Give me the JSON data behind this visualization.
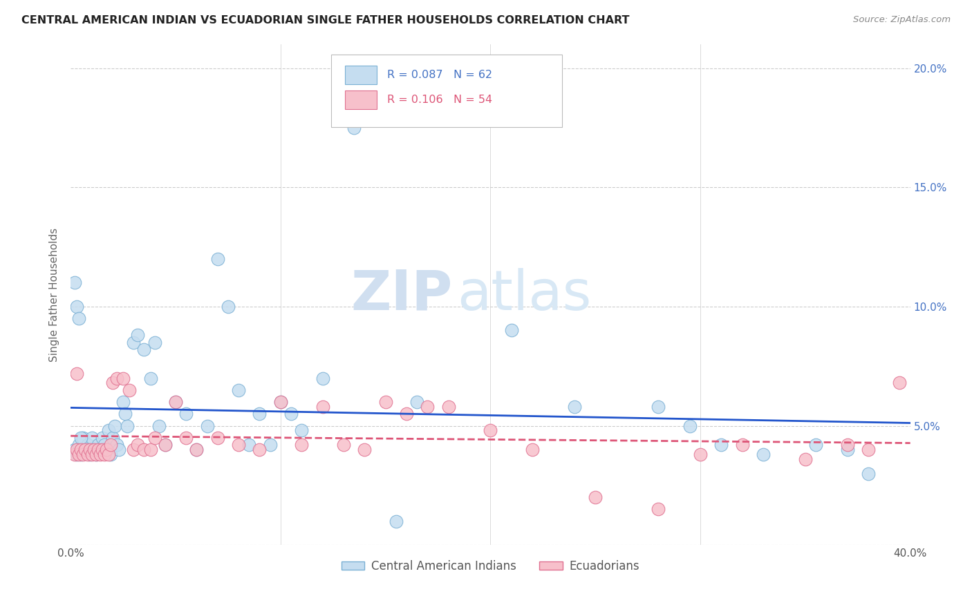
{
  "title": "CENTRAL AMERICAN INDIAN VS ECUADORIAN SINGLE FATHER HOUSEHOLDS CORRELATION CHART",
  "source": "Source: ZipAtlas.com",
  "ylabel": "Single Father Households",
  "xlim": [
    0.0,
    0.4
  ],
  "ylim": [
    0.0,
    0.21
  ],
  "watermark_zip": "ZIP",
  "watermark_atlas": "atlas",
  "line1_color": "#2255cc",
  "line2_color": "#dd5577",
  "scatter1_face": "#c5ddf0",
  "scatter1_edge": "#7ab0d4",
  "scatter2_face": "#f7c0cb",
  "scatter2_edge": "#e07090",
  "blue_x": [
    0.002,
    0.003,
    0.004,
    0.005,
    0.006,
    0.007,
    0.008,
    0.009,
    0.01,
    0.011,
    0.012,
    0.013,
    0.014,
    0.015,
    0.016,
    0.017,
    0.018,
    0.019,
    0.02,
    0.021,
    0.022,
    0.023,
    0.025,
    0.026,
    0.027,
    0.03,
    0.032,
    0.035,
    0.038,
    0.04,
    0.042,
    0.045,
    0.05,
    0.055,
    0.06,
    0.065,
    0.07,
    0.075,
    0.08,
    0.085,
    0.09,
    0.095,
    0.1,
    0.105,
    0.11,
    0.12,
    0.135,
    0.155,
    0.165,
    0.21,
    0.24,
    0.28,
    0.295,
    0.31,
    0.33,
    0.355,
    0.37,
    0.38,
    0.002,
    0.003,
    0.004,
    0.005
  ],
  "blue_y": [
    0.04,
    0.038,
    0.042,
    0.038,
    0.045,
    0.04,
    0.042,
    0.038,
    0.045,
    0.04,
    0.038,
    0.042,
    0.04,
    0.045,
    0.042,
    0.04,
    0.048,
    0.038,
    0.045,
    0.05,
    0.042,
    0.04,
    0.06,
    0.055,
    0.05,
    0.085,
    0.088,
    0.082,
    0.07,
    0.085,
    0.05,
    0.042,
    0.06,
    0.055,
    0.04,
    0.05,
    0.12,
    0.1,
    0.065,
    0.042,
    0.055,
    0.042,
    0.06,
    0.055,
    0.048,
    0.07,
    0.175,
    0.01,
    0.06,
    0.09,
    0.058,
    0.058,
    0.05,
    0.042,
    0.038,
    0.042,
    0.04,
    0.03,
    0.11,
    0.1,
    0.095,
    0.045
  ],
  "pink_x": [
    0.002,
    0.003,
    0.004,
    0.005,
    0.006,
    0.007,
    0.008,
    0.009,
    0.01,
    0.011,
    0.012,
    0.013,
    0.014,
    0.015,
    0.016,
    0.017,
    0.018,
    0.019,
    0.02,
    0.022,
    0.025,
    0.028,
    0.03,
    0.032,
    0.035,
    0.038,
    0.04,
    0.045,
    0.05,
    0.055,
    0.06,
    0.07,
    0.08,
    0.09,
    0.1,
    0.11,
    0.12,
    0.13,
    0.14,
    0.15,
    0.16,
    0.17,
    0.18,
    0.2,
    0.22,
    0.25,
    0.28,
    0.3,
    0.32,
    0.35,
    0.37,
    0.38,
    0.395,
    0.003
  ],
  "pink_y": [
    0.038,
    0.04,
    0.038,
    0.04,
    0.038,
    0.04,
    0.038,
    0.04,
    0.038,
    0.04,
    0.038,
    0.04,
    0.038,
    0.04,
    0.038,
    0.04,
    0.038,
    0.042,
    0.068,
    0.07,
    0.07,
    0.065,
    0.04,
    0.042,
    0.04,
    0.04,
    0.045,
    0.042,
    0.06,
    0.045,
    0.04,
    0.045,
    0.042,
    0.04,
    0.06,
    0.042,
    0.058,
    0.042,
    0.04,
    0.06,
    0.055,
    0.058,
    0.058,
    0.048,
    0.04,
    0.02,
    0.015,
    0.038,
    0.042,
    0.036,
    0.042,
    0.04,
    0.068,
    0.072
  ]
}
